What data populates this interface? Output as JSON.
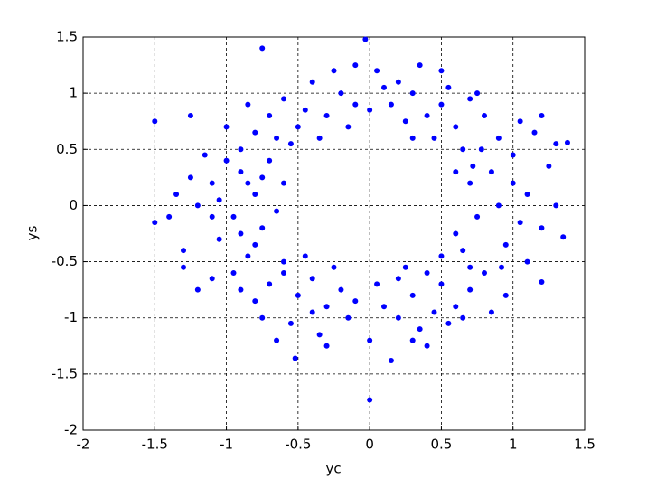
{
  "chart_data": {
    "type": "scatter",
    "xlabel": "yc",
    "ylabel": "ys",
    "color": "#0000ff",
    "grid": true,
    "xlim": [
      -2,
      1.5
    ],
    "ylim": [
      -2,
      1.5
    ],
    "xticks": [
      -2,
      -1.5,
      -1,
      -0.5,
      0,
      0.5,
      1,
      1.5
    ],
    "yticks": [
      -2,
      -1.5,
      -1,
      -0.5,
      0,
      0.5,
      1,
      1.5
    ],
    "x": [
      0.9,
      1.1,
      0.75,
      1.2,
      0.85,
      1.0,
      0.7,
      1.3,
      0.95,
      1.1,
      0.8,
      0.65,
      1.25,
      1.05,
      0.9,
      0.78,
      1.15,
      1.2,
      1.35,
      0.95,
      0.7,
      0.85,
      1.2,
      1.0,
      0.72,
      1.3,
      1.38,
      1.05,
      0.6,
      0.92,
      0.6,
      0.5,
      0.3,
      0.45,
      0.25,
      0.7,
      0.35,
      0.55,
      0.15,
      0.4,
      0.8,
      0.2,
      0.65,
      0.3,
      0.5,
      0.1,
      0.0,
      0.05,
      0.6,
      0.75,
      -0.1,
      -0.3,
      -0.5,
      -0.2,
      -0.4,
      -0.6,
      -0.7,
      -0.35,
      -0.15,
      -0.55,
      -0.8,
      -0.9,
      -0.25,
      -0.03,
      -0.75,
      -0.45,
      -0.65,
      -1.0,
      -0.85,
      -0.1,
      -0.9,
      -1.1,
      -0.8,
      -1.2,
      -0.95,
      -1.05,
      -0.75,
      -1.3,
      -0.85,
      -1.15,
      -1.0,
      -0.7,
      -1.25,
      -1.4,
      -1.5,
      -1.5,
      -1.25,
      -0.95,
      -1.1,
      -1.2,
      -0.65,
      -0.85,
      -1.35,
      -0.6,
      -1.1,
      -0.8,
      -1.05,
      -1.3,
      -0.75,
      -0.9,
      -0.7,
      -0.5,
      -0.3,
      -0.6,
      -0.4,
      -0.2,
      -0.8,
      -0.55,
      -0.35,
      -0.15,
      -0.45,
      -0.25,
      -0.75,
      -0.52,
      -0.65,
      -0.1,
      -0.4,
      -0.9,
      -0.3,
      -0.6,
      0.1,
      0.3,
      0.5,
      0.2,
      0.4,
      0.6,
      0.0,
      0.15,
      0.0,
      0.35,
      0.25,
      0.45,
      0.7,
      0.55,
      0.05,
      0.3,
      0.5,
      0.65,
      0.2,
      0.4
    ],
    "values": [
      0.0,
      0.1,
      -0.1,
      -0.2,
      0.3,
      0.45,
      0.2,
      0.0,
      -0.35,
      -0.5,
      -0.6,
      -0.4,
      0.35,
      -0.15,
      0.6,
      0.5,
      0.65,
      0.8,
      -0.28,
      -0.8,
      -0.75,
      -0.95,
      -0.68,
      0.2,
      0.35,
      0.55,
      0.56,
      0.75,
      -0.25,
      -0.55,
      0.7,
      0.9,
      1.0,
      0.6,
      0.75,
      0.95,
      1.25,
      1.05,
      0.9,
      0.8,
      0.8,
      1.1,
      0.5,
      0.6,
      1.2,
      1.05,
      0.85,
      1.2,
      0.3,
      1.0,
      0.9,
      0.8,
      0.7,
      1.0,
      1.1,
      0.95,
      0.8,
      0.6,
      0.7,
      0.55,
      0.65,
      0.5,
      1.2,
      1.48,
      1.4,
      0.85,
      0.6,
      0.7,
      0.9,
      1.25,
      0.3,
      0.2,
      0.1,
      0.0,
      -0.1,
      -0.3,
      -0.2,
      -0.4,
      -0.45,
      0.45,
      0.4,
      0.4,
      0.25,
      -0.1,
      -0.15,
      0.75,
      0.8,
      -0.6,
      -0.65,
      -0.75,
      -0.05,
      0.2,
      0.1,
      0.2,
      -0.1,
      -0.35,
      0.05,
      -0.55,
      0.25,
      -0.25,
      -0.7,
      -0.8,
      -0.9,
      -0.5,
      -0.65,
      -0.75,
      -0.85,
      -1.05,
      -1.15,
      -1.0,
      -0.45,
      -0.55,
      -1.0,
      -1.36,
      -1.2,
      -0.85,
      -0.95,
      -0.75,
      -1.25,
      -0.6,
      -0.9,
      -0.8,
      -0.7,
      -1.0,
      -0.6,
      -0.9,
      -1.2,
      -1.38,
      -1.73,
      -1.1,
      -0.55,
      -0.95,
      -0.55,
      -1.05,
      -0.7,
      -1.2,
      -0.45,
      -1.0,
      -0.65,
      -1.25
    ]
  }
}
